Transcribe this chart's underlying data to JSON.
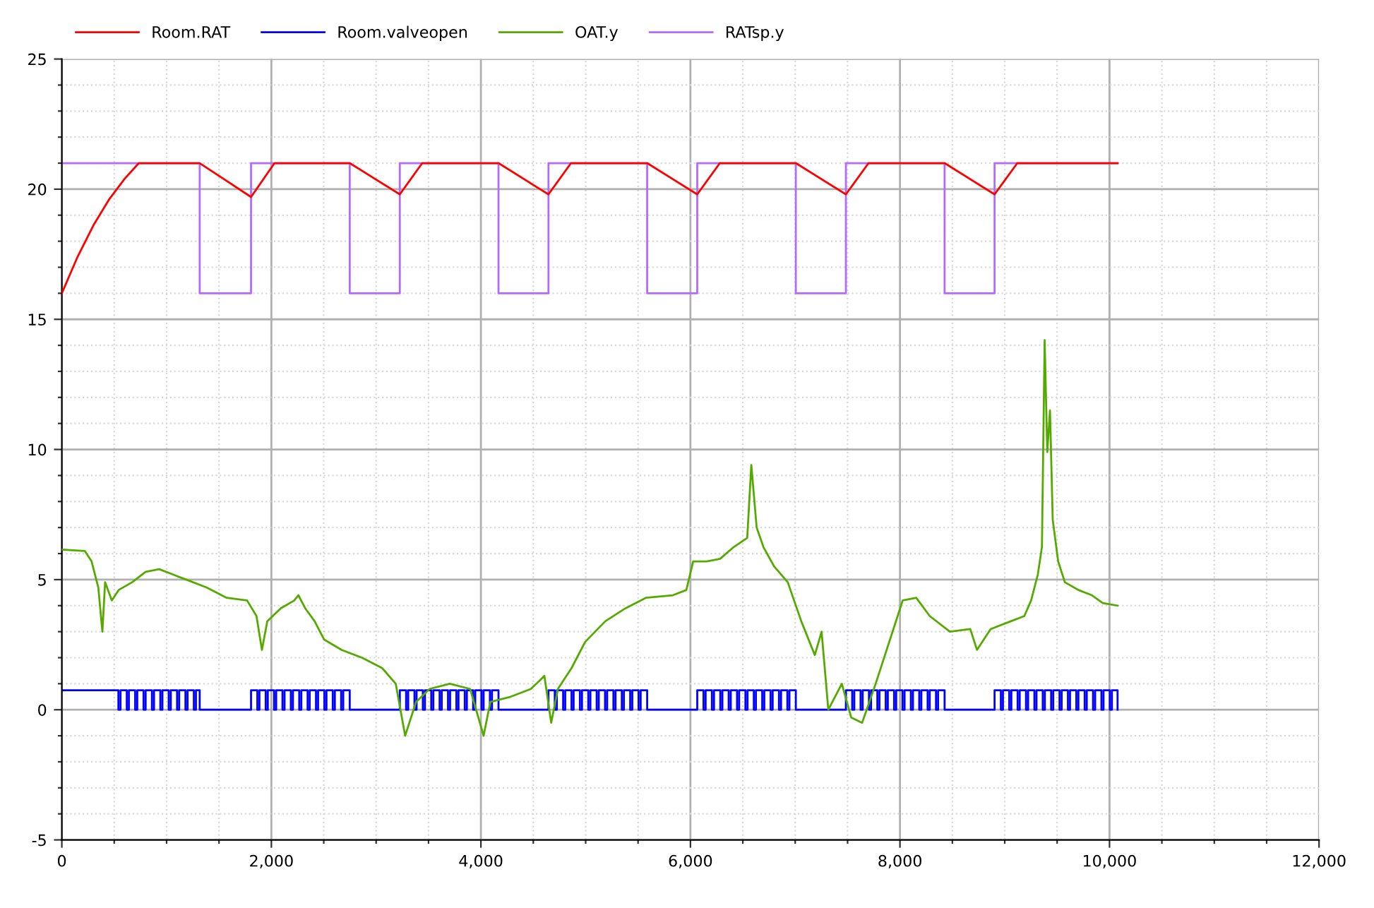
{
  "chart_data": {
    "type": "line",
    "xlim": [
      0,
      12000
    ],
    "xticks": [
      0,
      {
        "value": 500,
        "label": null
      },
      {
        "value": 1000,
        "label": null
      },
      {
        "value": 1500,
        "label": null
      },
      {
        "value": 2000,
        "label": "2,000"
      },
      {
        "value": 2500,
        "label": null
      },
      {
        "value": 3000,
        "label": null
      },
      {
        "value": 3500,
        "label": null
      },
      {
        "value": 4000,
        "label": "4,000"
      },
      {
        "value": 4500,
        "label": null
      },
      {
        "value": 5000,
        "label": null
      },
      {
        "value": 5500,
        "label": null
      },
      {
        "value": 6000,
        "label": "6,000"
      },
      {
        "value": 6500,
        "label": null
      },
      {
        "value": 7000,
        "label": null
      },
      {
        "value": 7500,
        "label": null
      },
      {
        "value": 8000,
        "label": "8,000"
      },
      {
        "value": 8500,
        "label": null
      },
      {
        "value": 9000,
        "label": null
      },
      {
        "value": 9500,
        "label": null
      },
      {
        "value": 10000,
        "label": "10,000"
      },
      {
        "value": 10500,
        "label": null
      },
      {
        "value": 11000,
        "label": null
      },
      {
        "value": 11500,
        "label": null
      },
      {
        "value": 12000,
        "label": "12,000"
      }
    ],
    "ylim": [
      -5,
      25
    ],
    "yticks": [
      -5,
      {
        "value": -4,
        "label": null
      },
      {
        "value": -3,
        "label": null
      },
      {
        "value": -2,
        "label": null
      },
      {
        "value": -1,
        "label": null
      },
      0,
      {
        "value": 1,
        "label": null
      },
      {
        "value": 2,
        "label": null
      },
      {
        "value": 3,
        "label": null
      },
      {
        "value": 4,
        "label": null
      },
      5,
      {
        "value": 6,
        "label": null
      },
      {
        "value": 7,
        "label": null
      },
      {
        "value": 8,
        "label": null
      },
      {
        "value": 9,
        "label": null
      },
      10,
      {
        "value": 11,
        "label": null
      },
      {
        "value": 12,
        "label": null
      },
      {
        "value": 13,
        "label": null
      },
      {
        "value": 14,
        "label": null
      },
      15,
      {
        "value": 16,
        "label": null
      },
      {
        "value": 17,
        "label": null
      },
      {
        "value": 18,
        "label": null
      },
      {
        "value": 19,
        "label": null
      },
      20,
      {
        "value": 21,
        "label": null
      },
      {
        "value": 22,
        "label": null
      },
      {
        "value": 23,
        "label": null
      },
      {
        "value": 24,
        "label": null
      },
      25
    ],
    "grid": true,
    "legend": "top left",
    "line_style": "solid",
    "marker": "none",
    "series": [
      {
        "name": "Room.RAT",
        "color": "#ff0000",
        "x": [
          0,
          150,
          300,
          450,
          600,
          735,
          1316,
          1806,
          2030,
          2748,
          3226,
          3440,
          4168,
          4645,
          4860,
          5587,
          6065,
          6280,
          7006,
          7484,
          7700,
          8426,
          8903,
          9120,
          10077
        ],
        "values": [
          16,
          17.4,
          18.6,
          19.6,
          20.4,
          21,
          21,
          19.7,
          21,
          21,
          19.8,
          21,
          21,
          19.8,
          21,
          21,
          19.8,
          21,
          21,
          19.8,
          21,
          21,
          19.8,
          21,
          21
        ]
      },
      {
        "name": "Room.valveopen",
        "color": "#0000ff",
        "type": "step",
        "x": [
          0,
          540,
          560,
          620,
          640,
          700,
          720,
          780,
          800,
          860,
          880,
          940,
          960,
          1020,
          1040,
          1100,
          1120,
          1180,
          1200,
          1260,
          1280,
          1316,
          1806,
          1866,
          1886,
          1946,
          1966,
          2026,
          2046,
          2106,
          2126,
          2186,
          2206,
          2266,
          2286,
          2346,
          2366,
          2426,
          2446,
          2506,
          2526,
          2586,
          2606,
          2666,
          2686,
          2748,
          3226,
          3286,
          3306,
          3366,
          3386,
          3446,
          3466,
          3526,
          3546,
          3606,
          3626,
          3686,
          3706,
          3766,
          3786,
          3846,
          3866,
          3926,
          3946,
          4006,
          4026,
          4086,
          4106,
          4168,
          4645,
          4705,
          4725,
          4785,
          4805,
          4865,
          4885,
          4945,
          4965,
          5025,
          5045,
          5105,
          5125,
          5185,
          5205,
          5265,
          5285,
          5345,
          5365,
          5425,
          5445,
          5505,
          5525,
          5587,
          6065,
          6125,
          6145,
          6205,
          6225,
          6285,
          6305,
          6365,
          6385,
          6445,
          6465,
          6525,
          6545,
          6605,
          6625,
          6685,
          6705,
          6765,
          6785,
          6845,
          6865,
          6925,
          6945,
          7006,
          7484,
          7544,
          7564,
          7624,
          7644,
          7704,
          7724,
          7784,
          7804,
          7864,
          7884,
          7944,
          7964,
          8024,
          8044,
          8104,
          8124,
          8184,
          8204,
          8264,
          8284,
          8344,
          8364,
          8426,
          8903,
          8963,
          8983,
          9043,
          9063,
          9123,
          9143,
          9203,
          9223,
          9283,
          9303,
          9363,
          9383,
          9443,
          9463,
          9523,
          9543,
          9603,
          9623,
          9683,
          9703,
          9763,
          9783,
          9843,
          9863,
          9923,
          9943,
          10003,
          10023,
          10077
        ],
        "values": [
          0.75,
          0,
          0.75,
          0,
          0.75,
          0,
          0.75,
          0,
          0.75,
          0,
          0.75,
          0,
          0.75,
          0,
          0.75,
          0,
          0.75,
          0,
          0.75,
          0,
          0.75,
          0,
          0.75,
          0,
          0.75,
          0,
          0.75,
          0,
          0.75,
          0,
          0.75,
          0,
          0.75,
          0,
          0.75,
          0,
          0.75,
          0,
          0.75,
          0,
          0.75,
          0,
          0.75,
          0,
          0.75,
          0,
          0.75,
          0,
          0.75,
          0,
          0.75,
          0,
          0.75,
          0,
          0.75,
          0,
          0.75,
          0,
          0.75,
          0,
          0.75,
          0,
          0.75,
          0,
          0.75,
          0,
          0.75,
          0,
          0.75,
          0,
          0.75,
          0,
          0.75,
          0,
          0.75,
          0,
          0.75,
          0,
          0.75,
          0,
          0.75,
          0,
          0.75,
          0,
          0.75,
          0,
          0.75,
          0,
          0.75,
          0,
          0.75,
          0,
          0.75,
          0,
          0.75,
          0,
          0.75,
          0,
          0.75,
          0,
          0.75,
          0,
          0.75,
          0,
          0.75,
          0,
          0.75,
          0,
          0.75,
          0,
          0.75,
          0,
          0.75,
          0,
          0.75,
          0,
          0.75,
          0,
          0.75,
          0,
          0.75,
          0,
          0.75,
          0,
          0.75,
          0,
          0.75,
          0,
          0.75,
          0,
          0.75,
          0,
          0.75,
          0,
          0.75,
          0,
          0.75,
          0,
          0.75,
          0,
          0.75,
          0,
          0.75,
          0,
          0.75,
          0,
          0.75,
          0,
          0.75,
          0,
          0.75,
          0,
          0.75,
          0,
          0.75,
          0,
          0.75,
          0,
          0.75,
          0,
          0.75,
          0,
          0.75,
          0,
          0.75,
          0,
          0.75,
          0,
          0.75,
          0,
          0.75,
          0
        ]
      },
      {
        "name": "OAT.y",
        "color": "#55aa00",
        "x": [
          0,
          219,
          284,
          348,
          387,
          413,
          477,
          542,
          671,
          800,
          929,
          1058,
          1187,
          1381,
          1574,
          1768,
          1858,
          1910,
          1961,
          2090,
          2219,
          2258,
          2323,
          2413,
          2503,
          2671,
          2865,
          3058,
          3187,
          3277,
          3381,
          3510,
          3703,
          3897,
          4026,
          4090,
          4284,
          4477,
          4606,
          4671,
          4735,
          4865,
          4994,
          5187,
          5381,
          5574,
          5832,
          5961,
          6026,
          6155,
          6284,
          6413,
          6542,
          6581,
          6632,
          6697,
          6800,
          6929,
          7058,
          7187,
          7252,
          7316,
          7445,
          7535,
          7639,
          7768,
          7897,
          8026,
          8155,
          8284,
          8477,
          8671,
          8735,
          8865,
          9058,
          9187,
          9252,
          9316,
          9355,
          9381,
          9406,
          9432,
          9458,
          9510,
          9574,
          9703,
          9832,
          9936,
          10077
        ],
        "values": [
          6.15,
          6.1,
          5.7,
          4.7,
          3.0,
          4.9,
          4.2,
          4.6,
          4.9,
          5.3,
          5.4,
          5.2,
          5.0,
          4.7,
          4.3,
          4.2,
          3.6,
          2.3,
          3.4,
          3.9,
          4.2,
          4.4,
          3.9,
          3.4,
          2.7,
          2.3,
          2.0,
          1.6,
          1.0,
          -1.0,
          0.3,
          0.8,
          1.0,
          0.8,
          -1.0,
          0.3,
          0.5,
          0.8,
          1.3,
          -0.5,
          0.8,
          1.6,
          2.6,
          3.4,
          3.9,
          4.3,
          4.4,
          4.6,
          5.7,
          5.7,
          5.8,
          6.25,
          6.6,
          9.4,
          7.0,
          6.25,
          5.5,
          4.9,
          3.4,
          2.1,
          3.0,
          0,
          1.0,
          -0.3,
          -0.5,
          1.0,
          2.6,
          4.2,
          4.3,
          3.6,
          3.0,
          3.1,
          2.3,
          3.1,
          3.4,
          3.6,
          4.2,
          5.2,
          6.25,
          14.2,
          9.9,
          11.5,
          7.3,
          5.7,
          4.9,
          4.6,
          4.4,
          4.1,
          4.0
        ]
      },
      {
        "name": "RATsp.y",
        "color": "#b469ff",
        "type": "step",
        "x": [
          0,
          1316,
          1806,
          2748,
          3226,
          4168,
          4645,
          5587,
          6065,
          7006,
          7484,
          8426,
          8903,
          10077
        ],
        "values": [
          21,
          16,
          21,
          16,
          21,
          16,
          21,
          16,
          21,
          16,
          21,
          16,
          21,
          21
        ]
      }
    ]
  }
}
